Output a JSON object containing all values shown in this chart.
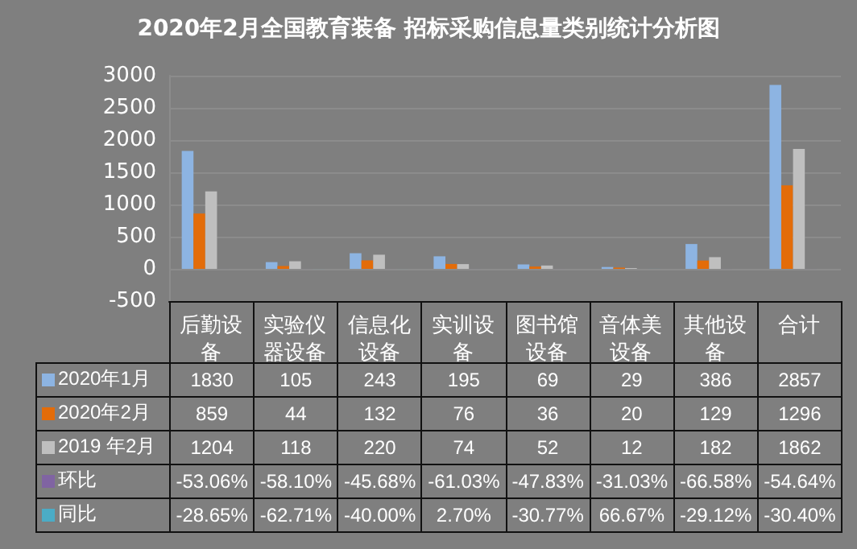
{
  "chart_data": {
    "type": "bar",
    "title": "2020年2月全国教育装备 招标采购信息量类别统计分析图",
    "categories": [
      "后勤设备",
      "实验仪器设备",
      "信息化设备",
      "实训设备",
      "图书馆设备",
      "音体美设备",
      "其他设备",
      "合计"
    ],
    "series": [
      {
        "name": "2020年1月",
        "color": "#8db4e2",
        "values": [
          1830,
          105,
          243,
          195,
          69,
          29,
          386,
          2857
        ],
        "value_labels": [
          "1830",
          "105",
          "243",
          "195",
          "69",
          "29",
          "386",
          "2857"
        ]
      },
      {
        "name": "2020年2月",
        "color": "#e36c09",
        "values": [
          859,
          44,
          132,
          76,
          36,
          20,
          129,
          1296
        ],
        "value_labels": [
          "859",
          "44",
          "132",
          "76",
          "36",
          "20",
          "129",
          "1296"
        ]
      },
      {
        "name": "2019 年2月",
        "color": "#bfbfbf",
        "values": [
          1204,
          118,
          220,
          74,
          52,
          12,
          182,
          1862
        ],
        "value_labels": [
          "1204",
          "118",
          "220",
          "74",
          "52",
          "12",
          "182",
          "1862"
        ]
      },
      {
        "name": "环比",
        "color": "#8064a2",
        "values": [
          -0.5306,
          -0.581,
          -0.4568,
          -0.6103,
          -0.4783,
          -0.3103,
          -0.6658,
          -0.5464
        ],
        "value_labels": [
          "-53.06%",
          "-58.10%",
          "-45.68%",
          "-61.03%",
          "-47.83%",
          "-31.03%",
          "-66.58%",
          "-54.64%"
        ]
      },
      {
        "name": "同比",
        "color": "#4bacc6",
        "values": [
          -0.2865,
          -0.6271,
          -0.4,
          0.027,
          -0.3077,
          0.6667,
          -0.2912,
          -0.304
        ],
        "value_labels": [
          "-28.65%",
          "-62.71%",
          "-40.00%",
          "2.70%",
          "-30.77%",
          "66.67%",
          "-29.12%",
          "-30.40%"
        ]
      }
    ],
    "ylim": [
      -500,
      3000
    ],
    "yticks": [
      -500,
      0,
      500,
      1000,
      1500,
      2000,
      2500,
      3000
    ],
    "grid": "y",
    "legend": "bottom"
  }
}
